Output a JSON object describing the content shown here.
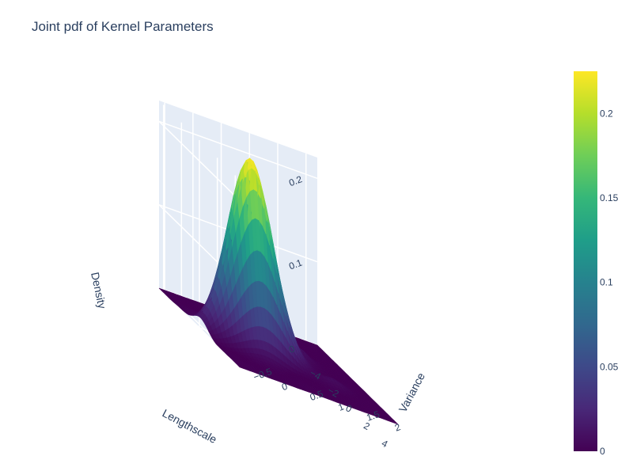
{
  "chart_data": {
    "type": "surface",
    "title": "Joint pdf of Kernel Parameters",
    "xlabel": "Lengthscale",
    "ylabel": "Variance",
    "zlabel": "Density",
    "x_ticks": [
      "−4",
      "−2",
      "0",
      "2",
      "4"
    ],
    "y_ticks": [
      "−0.5",
      "0",
      "0.5",
      "1",
      "1.5",
      "2"
    ],
    "z_ticks": [
      "0",
      "0.1",
      "0.2"
    ],
    "colorbar_ticks": [
      "0",
      "0.05",
      "0.1",
      "0.15",
      "0.2"
    ],
    "xlim": [
      -4.5,
      4.5
    ],
    "ylim": [
      -0.6,
      2.2
    ],
    "zlim": [
      0,
      0.225
    ],
    "peak": {
      "lengthscale": 0.0,
      "variance": 0.3,
      "density": 0.225
    },
    "colorscale": "Viridis",
    "colors": [
      "#440154",
      "#482878",
      "#3e4989",
      "#31688e",
      "#26828e",
      "#1f9e89",
      "#35b779",
      "#6ece58",
      "#b5de2b",
      "#fde725"
    ],
    "grid": true,
    "background": "#e5ecf6"
  }
}
